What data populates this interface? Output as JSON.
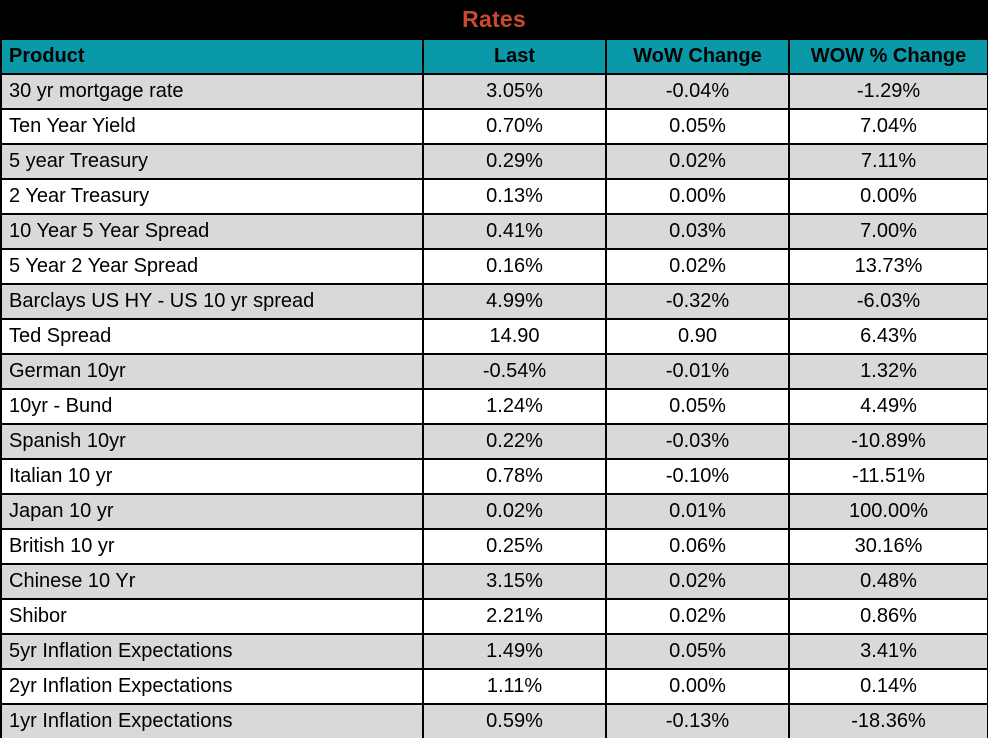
{
  "title": "Rates",
  "colors": {
    "title_bg": "#000000",
    "title_text": "#C94A2D",
    "header_bg": "#0999A8",
    "row_alt_bg": "#D9D9D9",
    "row_bg": "#FFFFFF",
    "border": "#000000",
    "text": "#000000"
  },
  "chart_data": {
    "type": "table",
    "title": "Rates",
    "columns": [
      "Product",
      "Last",
      "WoW Change",
      "WOW % Change"
    ],
    "rows": [
      [
        "30 yr mortgage rate",
        "3.05%",
        "-0.04%",
        "-1.29%"
      ],
      [
        "Ten Year Yield",
        "0.70%",
        "0.05%",
        "7.04%"
      ],
      [
        "5 year Treasury",
        "0.29%",
        "0.02%",
        "7.11%"
      ],
      [
        "2 Year Treasury",
        "0.13%",
        "0.00%",
        "0.00%"
      ],
      [
        "10 Year 5 Year Spread",
        "0.41%",
        "0.03%",
        "7.00%"
      ],
      [
        "5 Year 2 Year Spread",
        "0.16%",
        "0.02%",
        "13.73%"
      ],
      [
        "Barclays US HY - US 10 yr spread",
        "4.99%",
        "-0.32%",
        "-6.03%"
      ],
      [
        "Ted Spread",
        "14.90",
        "0.90",
        "6.43%"
      ],
      [
        "German 10yr",
        "-0.54%",
        "-0.01%",
        "1.32%"
      ],
      [
        "10yr - Bund",
        "1.24%",
        "0.05%",
        "4.49%"
      ],
      [
        "Spanish 10yr",
        "0.22%",
        "-0.03%",
        "-10.89%"
      ],
      [
        "Italian 10 yr",
        "0.78%",
        "-0.10%",
        "-11.51%"
      ],
      [
        "Japan 10 yr",
        "0.02%",
        "0.01%",
        "100.00%"
      ],
      [
        "British 10 yr",
        "0.25%",
        "0.06%",
        "30.16%"
      ],
      [
        "Chinese 10 Yr",
        "3.15%",
        "0.02%",
        "0.48%"
      ],
      [
        "Shibor",
        "2.21%",
        "0.02%",
        "0.86%"
      ],
      [
        "5yr Inflation Expectations",
        "1.49%",
        "0.05%",
        "3.41%"
      ],
      [
        "2yr Inflation Expectations",
        "1.11%",
        "0.00%",
        "0.14%"
      ],
      [
        "1yr Inflation Expectations",
        "0.59%",
        "-0.13%",
        "-18.36%"
      ]
    ]
  }
}
